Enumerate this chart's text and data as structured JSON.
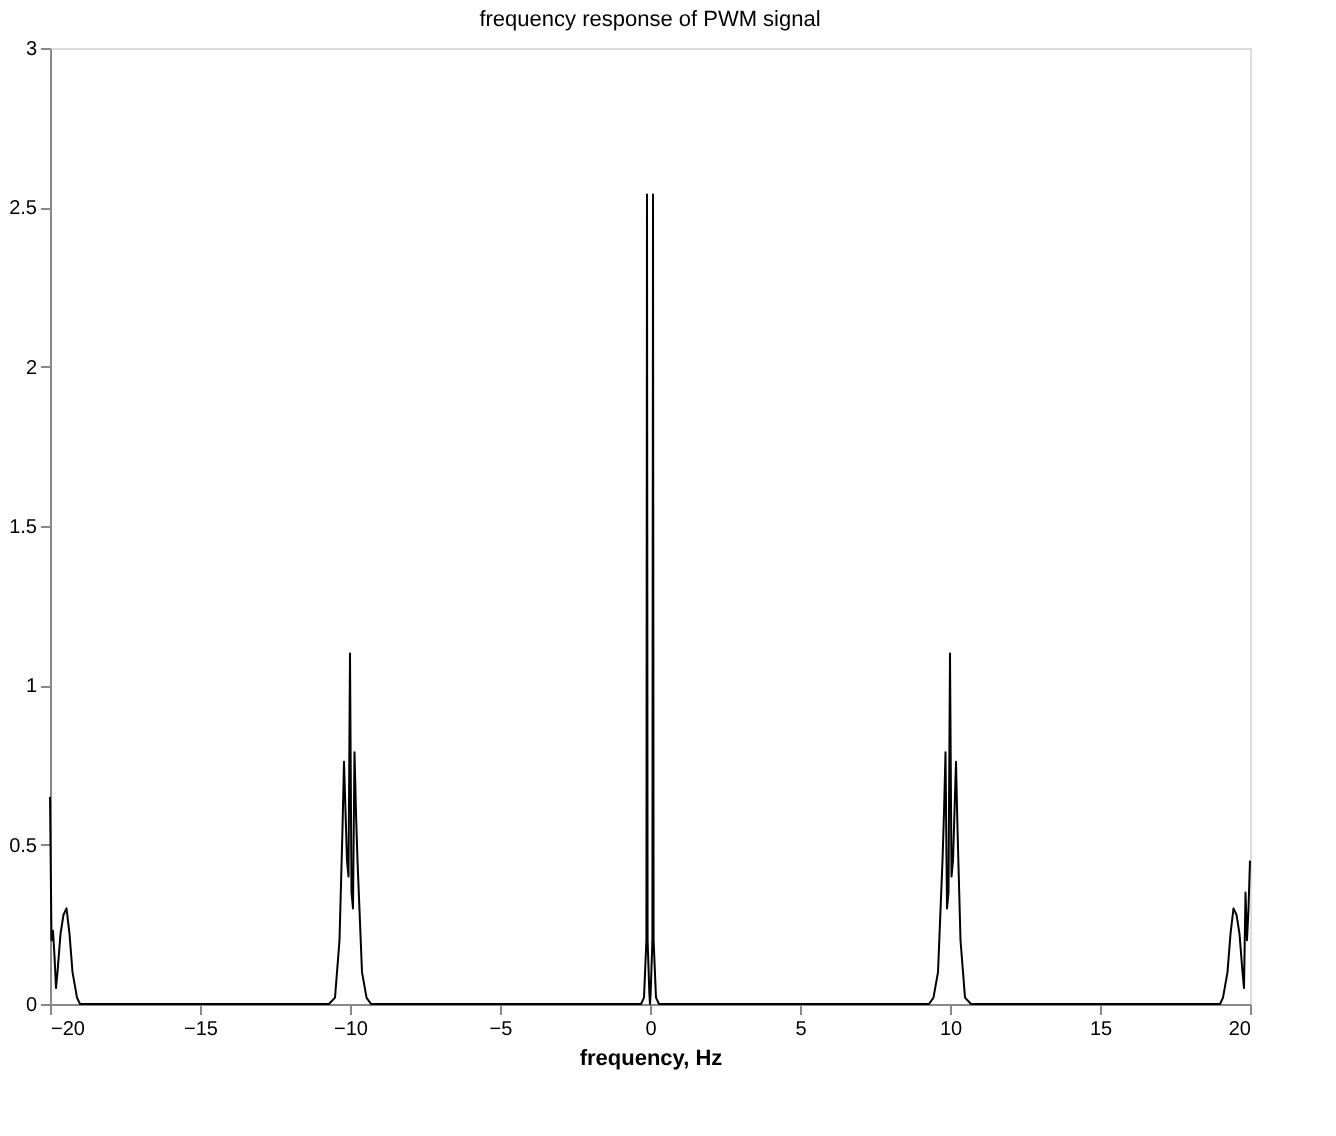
{
  "chart_data": {
    "type": "line",
    "title": "frequency response of PWM signal",
    "xlabel": "frequency, Hz",
    "xlim": [
      -20,
      20
    ],
    "ylim": [
      0,
      3
    ],
    "xticks": [
      -20,
      -15,
      -10,
      -5,
      0,
      5,
      10,
      15,
      20
    ],
    "yticks": [
      0,
      0.5,
      1,
      1.5,
      2,
      2.5,
      3
    ],
    "grid": false,
    "marker": "none",
    "line_style": "solid",
    "series": [
      {
        "color": "#000000",
        "x": [
          -20,
          -19.95,
          -19.9,
          -19.85,
          -19.8,
          -19.75,
          -19.65,
          -19.55,
          -19.45,
          -19.35,
          -19.25,
          -19.1,
          -19.0,
          -18.8,
          -10.7,
          -10.5,
          -10.35,
          -10.25,
          -10.2,
          -10.1,
          -10.05,
          -10.0,
          -9.95,
          -9.9,
          -9.85,
          -9.8,
          -9.75,
          -9.6,
          -9.45,
          -9.3,
          -0.3,
          -0.2,
          -0.12,
          -0.1,
          -0.08,
          -0.02,
          0,
          0.02,
          0.08,
          0.1,
          0.12,
          0.2,
          0.3,
          9.3,
          9.45,
          9.6,
          9.75,
          9.8,
          9.85,
          9.9,
          9.95,
          10.0,
          10.05,
          10.1,
          10.2,
          10.25,
          10.35,
          10.5,
          10.7,
          18.8,
          19.0,
          19.1,
          19.25,
          19.35,
          19.45,
          19.55,
          19.65,
          19.75,
          19.8,
          19.85,
          19.9,
          19.95,
          20
        ],
        "values": [
          0.65,
          0.2,
          0.23,
          0.15,
          0.05,
          0.1,
          0.22,
          0.28,
          0.3,
          0.22,
          0.1,
          0.02,
          0,
          0,
          0,
          0.02,
          0.2,
          0.55,
          0.76,
          0.45,
          0.4,
          1.1,
          0.35,
          0.3,
          0.79,
          0.6,
          0.45,
          0.1,
          0.02,
          0,
          0,
          0.02,
          0.2,
          2.54,
          0.2,
          0.03,
          0,
          0.03,
          0.2,
          2.54,
          0.2,
          0.02,
          0,
          0,
          0.02,
          0.1,
          0.45,
          0.6,
          0.79,
          0.3,
          0.35,
          1.1,
          0.4,
          0.45,
          0.76,
          0.55,
          0.2,
          0.02,
          0,
          0,
          0,
          0.02,
          0.1,
          0.22,
          0.3,
          0.28,
          0.22,
          0.1,
          0.05,
          0.35,
          0.2,
          0.3,
          0.45
        ]
      }
    ]
  }
}
